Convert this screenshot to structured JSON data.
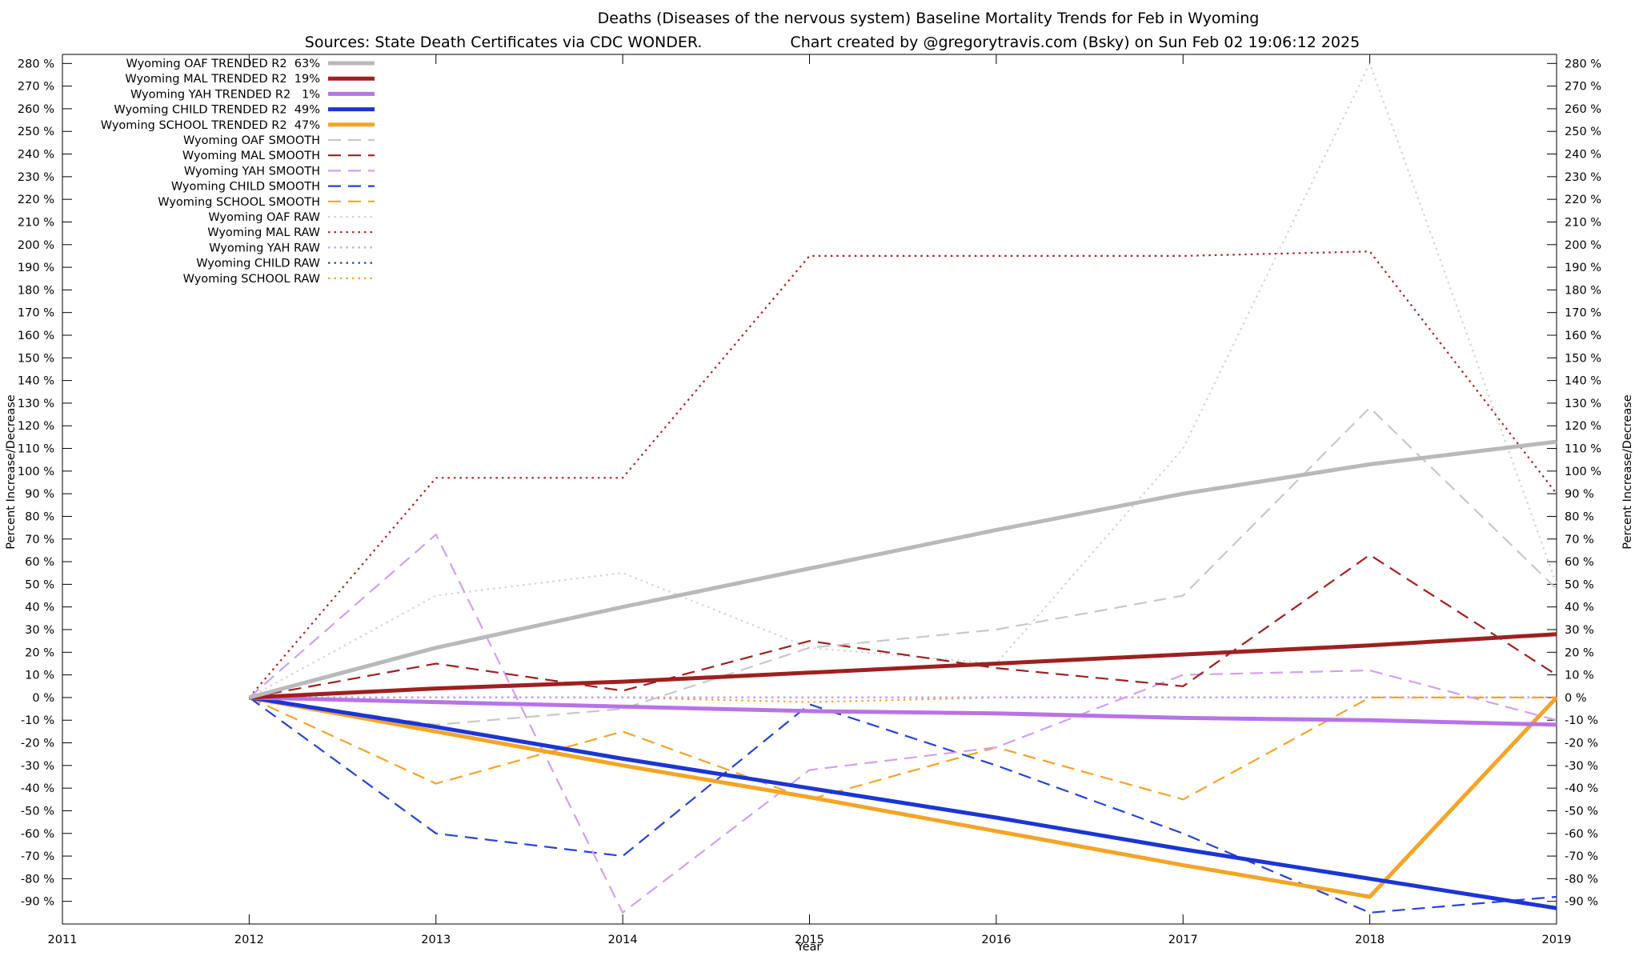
{
  "title": {
    "line1": "Deaths (Diseases of the nervous system)  Baseline Mortality Trends for Feb in Wyoming",
    "sources": "Sources: State Death Certificates via CDC WONDER.",
    "credit": "Chart created by @gregorytravis.com (Bsky) on Sun Feb 02 19:06:12 2025"
  },
  "axes": {
    "y_left_label": "Percent Increase/Decrease",
    "y_right_label": "Percent Increase/Decrease",
    "x_label": "Year",
    "tick_suffix": " %"
  },
  "chart_data": {
    "type": "line",
    "title": "Deaths (Diseases of the nervous system)  Baseline Mortality Trends for Feb in Wyoming",
    "xlabel": "Year",
    "ylabel": "Percent Increase/Decrease",
    "grid": false,
    "legend_position": "top-left",
    "xlim": [
      2011,
      2019
    ],
    "ylim": [
      -100,
      284
    ],
    "x_tick_range": {
      "min": 2011,
      "max": 2019,
      "step": 1
    },
    "y_tick_range": {
      "min": -90,
      "max": 280,
      "step": 10
    },
    "x": [
      2012,
      2013,
      2014,
      2015,
      2016,
      2017,
      2018,
      2019
    ],
    "series": [
      {
        "name": "oaf-trended",
        "label": "Wyoming OAF TRENDED R2  63%",
        "r2": 63,
        "color": "#b9b9b9",
        "width": 5,
        "dash": null,
        "values": [
          0,
          22,
          40,
          57,
          74,
          90,
          103,
          113
        ]
      },
      {
        "name": "mal-trended",
        "label": "Wyoming MAL TRENDED R2  19%",
        "r2": 19,
        "color": "#9e2020",
        "width": 5,
        "dash": null,
        "values": [
          0,
          4,
          7,
          11,
          15,
          19,
          23,
          28
        ]
      },
      {
        "name": "yah-trended",
        "label": "Wyoming YAH TRENDED R2   1%",
        "r2": 1,
        "color": "#b873e6",
        "width": 5,
        "dash": null,
        "values": [
          0,
          -2,
          -4,
          -6,
          -7,
          -9,
          -10,
          -12
        ]
      },
      {
        "name": "child-trended",
        "label": "Wyoming CHILD TRENDED R2  49%",
        "r2": 49,
        "color": "#1b35d6",
        "width": 5,
        "dash": null,
        "values": [
          0,
          -13,
          -27,
          -40,
          -53,
          -67,
          -80,
          -93
        ]
      },
      {
        "name": "school-trended",
        "label": "Wyoming SCHOOL TRENDED R2  47%",
        "r2": 47,
        "color": "#f4a427",
        "width": 5,
        "dash": null,
        "values": [
          0,
          -15,
          -30,
          -44,
          -59,
          -74,
          -88,
          0
        ]
      },
      {
        "name": "oaf-smooth",
        "label": "Wyoming OAF SMOOTH",
        "color": "#c8c8c8",
        "width": 2.2,
        "dash": "16 9",
        "values": [
          0,
          -12,
          -5,
          22,
          30,
          45,
          128,
          48
        ]
      },
      {
        "name": "mal-smooth",
        "label": "Wyoming MAL SMOOTH",
        "color": "#9e2020",
        "width": 2.2,
        "dash": "16 9",
        "values": [
          0,
          15,
          3,
          25,
          13,
          5,
          63,
          10
        ]
      },
      {
        "name": "yah-smooth",
        "label": "Wyoming YAH SMOOTH",
        "color": "#d0a1f2",
        "width": 2.2,
        "dash": "16 9",
        "values": [
          0,
          72,
          -95,
          -32,
          -22,
          10,
          12,
          -10
        ]
      },
      {
        "name": "child-smooth",
        "label": "Wyoming CHILD SMOOTH",
        "color": "#2743d2",
        "width": 2.2,
        "dash": "16 9",
        "values": [
          0,
          -60,
          -70,
          -3,
          -30,
          -60,
          -95,
          -88
        ]
      },
      {
        "name": "school-smooth",
        "label": "Wyoming SCHOOL SMOOTH",
        "color": "#f4a427",
        "width": 2.2,
        "dash": "16 9",
        "values": [
          0,
          -38,
          -15,
          -45,
          -22,
          -45,
          0,
          0
        ]
      },
      {
        "name": "oaf-raw",
        "label": "Wyoming OAF RAW",
        "color": "#d4d4d4",
        "width": 2.2,
        "dash": "2.5 5",
        "values": [
          0,
          45,
          55,
          22,
          15,
          110,
          280,
          50
        ]
      },
      {
        "name": "mal-raw",
        "label": "Wyoming MAL RAW",
        "color": "#aa2424",
        "width": 2.2,
        "dash": "2.5 5",
        "values": [
          0,
          97,
          97,
          195,
          195,
          195,
          197,
          90
        ]
      },
      {
        "name": "yah-raw",
        "label": "Wyoming YAH RAW",
        "color": "#d0a1f2",
        "width": 2.2,
        "dash": "2.5 5",
        "values": [
          0,
          0,
          0,
          0,
          0,
          0,
          0,
          0
        ]
      },
      {
        "name": "child-raw",
        "label": "Wyoming CHILD RAW",
        "color": "#2743d2",
        "width": 2.2,
        "dash": "2.5 5",
        "values": [
          0,
          0,
          0,
          0,
          0,
          0,
          0,
          0
        ]
      },
      {
        "name": "school-raw",
        "label": "Wyoming SCHOOL RAW",
        "color": "#f4a427",
        "width": 2.2,
        "dash": "2.5 5",
        "values": [
          0,
          0,
          0,
          -2,
          0,
          0,
          0,
          0
        ]
      }
    ]
  }
}
